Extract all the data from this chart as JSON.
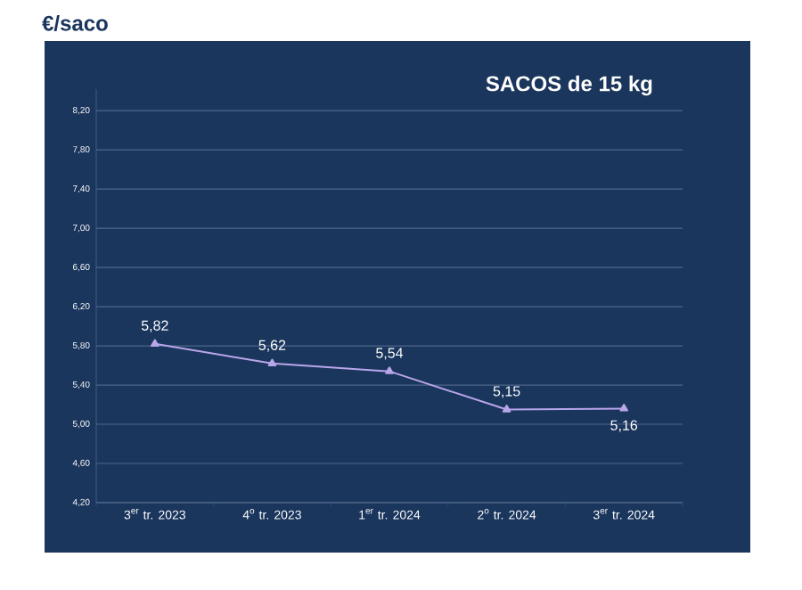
{
  "chart_data": {
    "type": "line",
    "title": "SACOS de 15 kg",
    "ylabel": "€/saco",
    "categories": [
      "3$^{er}$ tr. 2023",
      "4$^{o}$ tr. 2023",
      "1$^{er}$ tr. 2024",
      "2$^{o}$ tr. 2024",
      "3$^{er}$ tr. 2024"
    ],
    "series": [
      {
        "color": "#b9a6ea",
        "values": [
          5.82,
          5.62,
          5.54,
          5.15,
          5.16
        ],
        "value_labels": [
          "5,82",
          "5,62",
          "5,54",
          "5,15",
          "5,16"
        ]
      }
    ],
    "ylim": [
      4.2,
      8.42
    ],
    "yticks": [
      {
        "value": 4.2,
        "label": "4,20"
      },
      {
        "value": 4.6,
        "label": "4,60"
      },
      {
        "value": 5.0,
        "label": "5,00"
      },
      {
        "value": 5.4,
        "label": "5,40"
      },
      {
        "value": 5.8,
        "label": "5,80"
      },
      {
        "value": 6.2,
        "label": "6,20"
      },
      {
        "value": 6.6,
        "label": "6,60"
      },
      {
        "value": 7.0,
        "label": "7,00"
      },
      {
        "value": 7.4,
        "label": "7,40"
      },
      {
        "value": 7.8,
        "label": "7,80"
      },
      {
        "value": 8.2,
        "label": "8,20"
      }
    ],
    "grid": "y",
    "marker": "triangle",
    "line_style": "solid"
  }
}
